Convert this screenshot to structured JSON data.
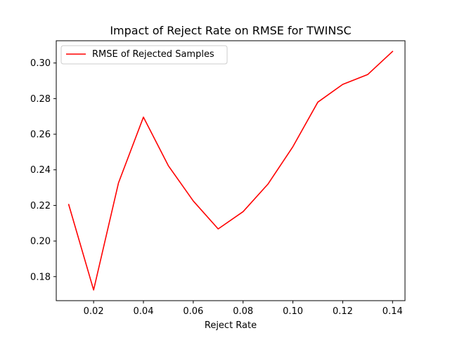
{
  "chart_data": {
    "type": "line",
    "title": "Impact of Reject Rate on RMSE for TWINSC",
    "xlabel": "Reject Rate",
    "ylabel": "",
    "xlim": [
      0.005,
      0.145
    ],
    "ylim": [
      0.1665,
      0.3125
    ],
    "xticks": [
      0.02,
      0.04,
      0.06,
      0.08,
      0.1,
      0.12,
      0.14
    ],
    "xtick_labels": [
      "0.02",
      "0.04",
      "0.06",
      "0.08",
      "0.10",
      "0.12",
      "0.14"
    ],
    "yticks": [
      0.18,
      0.2,
      0.22,
      0.24,
      0.26,
      0.28,
      0.3
    ],
    "ytick_labels": [
      "0.18",
      "0.20",
      "0.22",
      "0.24",
      "0.26",
      "0.28",
      "0.30"
    ],
    "grid": false,
    "legend_position": "upper-left",
    "x": [
      0.01,
      0.02,
      0.03,
      0.04,
      0.05,
      0.06,
      0.07,
      0.08,
      0.09,
      0.1,
      0.11,
      0.12,
      0.13,
      0.14
    ],
    "series": [
      {
        "name": "RMSE of Rejected Samples",
        "color": "#ff0000",
        "values": [
          0.2205,
          0.1725,
          0.2327,
          0.2696,
          0.2423,
          0.2225,
          0.2068,
          0.2165,
          0.232,
          0.253,
          0.278,
          0.288,
          0.2935,
          0.3065
        ]
      }
    ]
  }
}
